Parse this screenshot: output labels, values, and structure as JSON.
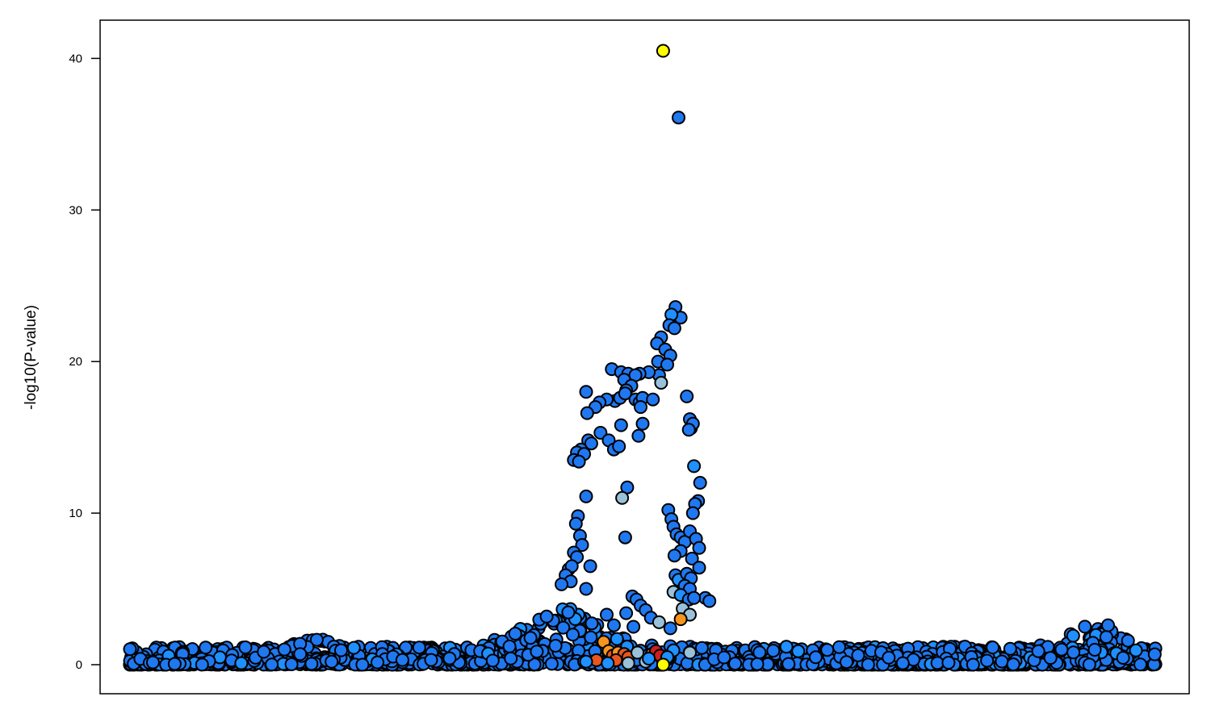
{
  "chart_data": {
    "type": "scatter",
    "title": "",
    "xlabel": "",
    "ylabel": "-log10(P-value)",
    "xlim": [
      0,
      1
    ],
    "ylim": [
      -2,
      42.5
    ],
    "yticks": [
      0,
      10,
      20,
      30,
      40
    ],
    "x_ticks_shown": false,
    "grid": false,
    "legend": "none",
    "colors": {
      "default": "#1f78f0",
      "light": "#1e90ff",
      "pale": "#99c2da",
      "orange": "#f7941d",
      "dark_orange": "#e8561f",
      "red": "#cc1f1f",
      "yellow": "#ffff00"
    },
    "highlight_points": [
      {
        "x": 0.52,
        "y": 40.5,
        "color": "yellow"
      },
      {
        "x": 0.52,
        "y": 0.0,
        "color": "yellow"
      }
    ],
    "peak_points": [
      {
        "x": 0.535,
        "y": 36.1,
        "color": "default"
      },
      {
        "x": 0.532,
        "y": 23.6,
        "color": "default"
      },
      {
        "x": 0.537,
        "y": 22.9,
        "color": "default"
      },
      {
        "x": 0.528,
        "y": 23.1,
        "color": "light"
      },
      {
        "x": 0.526,
        "y": 22.4,
        "color": "default"
      },
      {
        "x": 0.531,
        "y": 22.2,
        "color": "default"
      },
      {
        "x": 0.518,
        "y": 21.6,
        "color": "default"
      },
      {
        "x": 0.514,
        "y": 21.2,
        "color": "default"
      },
      {
        "x": 0.522,
        "y": 20.8,
        "color": "default"
      },
      {
        "x": 0.527,
        "y": 20.4,
        "color": "default"
      },
      {
        "x": 0.515,
        "y": 20.0,
        "color": "default"
      },
      {
        "x": 0.524,
        "y": 19.8,
        "color": "default"
      },
      {
        "x": 0.516,
        "y": 19.1,
        "color": "default"
      },
      {
        "x": 0.518,
        "y": 18.6,
        "color": "pale"
      },
      {
        "x": 0.506,
        "y": 19.3,
        "color": "default"
      },
      {
        "x": 0.497,
        "y": 19.2,
        "color": "default"
      },
      {
        "x": 0.47,
        "y": 19.5,
        "color": "default"
      },
      {
        "x": 0.479,
        "y": 19.3,
        "color": "default"
      },
      {
        "x": 0.486,
        "y": 19.2,
        "color": "default"
      },
      {
        "x": 0.493,
        "y": 19.1,
        "color": "default"
      },
      {
        "x": 0.482,
        "y": 18.8,
        "color": "default"
      },
      {
        "x": 0.489,
        "y": 18.4,
        "color": "default"
      },
      {
        "x": 0.484,
        "y": 18.1,
        "color": "default"
      },
      {
        "x": 0.445,
        "y": 18.0,
        "color": "default"
      },
      {
        "x": 0.473,
        "y": 17.4,
        "color": "default"
      },
      {
        "x": 0.465,
        "y": 17.5,
        "color": "default"
      },
      {
        "x": 0.458,
        "y": 17.3,
        "color": "default"
      },
      {
        "x": 0.478,
        "y": 17.6,
        "color": "default"
      },
      {
        "x": 0.483,
        "y": 17.9,
        "color": "default"
      },
      {
        "x": 0.493,
        "y": 17.5,
        "color": "default"
      },
      {
        "x": 0.497,
        "y": 17.3,
        "color": "default"
      },
      {
        "x": 0.5,
        "y": 17.6,
        "color": "default"
      },
      {
        "x": 0.51,
        "y": 17.5,
        "color": "default"
      },
      {
        "x": 0.498,
        "y": 17.0,
        "color": "default"
      },
      {
        "x": 0.454,
        "y": 17.0,
        "color": "default"
      },
      {
        "x": 0.446,
        "y": 16.6,
        "color": "default"
      },
      {
        "x": 0.459,
        "y": 15.3,
        "color": "default"
      },
      {
        "x": 0.479,
        "y": 15.8,
        "color": "default"
      },
      {
        "x": 0.5,
        "y": 15.9,
        "color": "default"
      },
      {
        "x": 0.496,
        "y": 15.1,
        "color": "default"
      },
      {
        "x": 0.467,
        "y": 14.8,
        "color": "default"
      },
      {
        "x": 0.472,
        "y": 14.2,
        "color": "default"
      },
      {
        "x": 0.477,
        "y": 14.4,
        "color": "default"
      },
      {
        "x": 0.447,
        "y": 14.8,
        "color": "default"
      },
      {
        "x": 0.45,
        "y": 14.6,
        "color": "default"
      },
      {
        "x": 0.44,
        "y": 14.2,
        "color": "default"
      },
      {
        "x": 0.436,
        "y": 14.0,
        "color": "default"
      },
      {
        "x": 0.443,
        "y": 13.9,
        "color": "default"
      },
      {
        "x": 0.433,
        "y": 13.5,
        "color": "default"
      },
      {
        "x": 0.438,
        "y": 13.4,
        "color": "default"
      },
      {
        "x": 0.445,
        "y": 11.1,
        "color": "default"
      },
      {
        "x": 0.485,
        "y": 11.7,
        "color": "default"
      },
      {
        "x": 0.48,
        "y": 11.0,
        "color": "pale"
      },
      {
        "x": 0.483,
        "y": 8.4,
        "color": "default"
      },
      {
        "x": 0.437,
        "y": 9.8,
        "color": "default"
      },
      {
        "x": 0.435,
        "y": 9.3,
        "color": "default"
      },
      {
        "x": 0.439,
        "y": 8.5,
        "color": "default"
      },
      {
        "x": 0.441,
        "y": 7.9,
        "color": "default"
      },
      {
        "x": 0.433,
        "y": 7.4,
        "color": "default"
      },
      {
        "x": 0.436,
        "y": 7.1,
        "color": "default"
      },
      {
        "x": 0.428,
        "y": 6.3,
        "color": "default"
      },
      {
        "x": 0.431,
        "y": 6.5,
        "color": "default"
      },
      {
        "x": 0.449,
        "y": 6.5,
        "color": "default"
      },
      {
        "x": 0.425,
        "y": 5.9,
        "color": "default"
      },
      {
        "x": 0.43,
        "y": 5.5,
        "color": "default"
      },
      {
        "x": 0.421,
        "y": 5.3,
        "color": "default"
      },
      {
        "x": 0.445,
        "y": 5.0,
        "color": "default"
      },
      {
        "x": 0.543,
        "y": 17.7,
        "color": "default"
      },
      {
        "x": 0.546,
        "y": 16.2,
        "color": "default"
      },
      {
        "x": 0.547,
        "y": 15.6,
        "color": "default"
      },
      {
        "x": 0.549,
        "y": 15.9,
        "color": "default"
      },
      {
        "x": 0.545,
        "y": 15.5,
        "color": "default"
      },
      {
        "x": 0.55,
        "y": 13.1,
        "color": "light"
      },
      {
        "x": 0.556,
        "y": 12.0,
        "color": "default"
      },
      {
        "x": 0.554,
        "y": 10.8,
        "color": "default"
      },
      {
        "x": 0.551,
        "y": 10.6,
        "color": "default"
      },
      {
        "x": 0.549,
        "y": 10.0,
        "color": "default"
      },
      {
        "x": 0.525,
        "y": 10.2,
        "color": "default"
      },
      {
        "x": 0.528,
        "y": 9.6,
        "color": "default"
      },
      {
        "x": 0.53,
        "y": 9.1,
        "color": "default"
      },
      {
        "x": 0.533,
        "y": 8.6,
        "color": "default"
      },
      {
        "x": 0.537,
        "y": 8.4,
        "color": "default"
      },
      {
        "x": 0.541,
        "y": 8.1,
        "color": "default"
      },
      {
        "x": 0.546,
        "y": 8.8,
        "color": "default"
      },
      {
        "x": 0.552,
        "y": 8.3,
        "color": "default"
      },
      {
        "x": 0.555,
        "y": 7.7,
        "color": "default"
      },
      {
        "x": 0.537,
        "y": 7.5,
        "color": "default"
      },
      {
        "x": 0.531,
        "y": 7.2,
        "color": "default"
      },
      {
        "x": 0.548,
        "y": 7.0,
        "color": "default"
      },
      {
        "x": 0.555,
        "y": 6.4,
        "color": "default"
      },
      {
        "x": 0.532,
        "y": 5.9,
        "color": "default"
      },
      {
        "x": 0.535,
        "y": 5.6,
        "color": "light"
      },
      {
        "x": 0.543,
        "y": 6.0,
        "color": "default"
      },
      {
        "x": 0.547,
        "y": 5.7,
        "color": "default"
      },
      {
        "x": 0.541,
        "y": 5.2,
        "color": "default"
      },
      {
        "x": 0.546,
        "y": 5.0,
        "color": "default"
      },
      {
        "x": 0.53,
        "y": 4.8,
        "color": "pale"
      },
      {
        "x": 0.537,
        "y": 4.6,
        "color": "light"
      },
      {
        "x": 0.545,
        "y": 4.3,
        "color": "default"
      },
      {
        "x": 0.561,
        "y": 4.4,
        "color": "default"
      },
      {
        "x": 0.565,
        "y": 4.2,
        "color": "default"
      },
      {
        "x": 0.55,
        "y": 4.4,
        "color": "default"
      },
      {
        "x": 0.539,
        "y": 3.7,
        "color": "pale"
      },
      {
        "x": 0.546,
        "y": 3.3,
        "color": "pale"
      },
      {
        "x": 0.537,
        "y": 3.0,
        "color": "orange"
      },
      {
        "x": 0.49,
        "y": 4.5,
        "color": "default"
      },
      {
        "x": 0.494,
        "y": 4.3,
        "color": "default"
      },
      {
        "x": 0.498,
        "y": 3.9,
        "color": "default"
      },
      {
        "x": 0.503,
        "y": 3.6,
        "color": "default"
      },
      {
        "x": 0.508,
        "y": 3.1,
        "color": "default"
      },
      {
        "x": 0.516,
        "y": 2.8,
        "color": "pale"
      },
      {
        "x": 0.527,
        "y": 2.4,
        "color": "default"
      },
      {
        "x": 0.472,
        "y": 2.6,
        "color": "default"
      },
      {
        "x": 0.465,
        "y": 3.3,
        "color": "default"
      },
      {
        "x": 0.484,
        "y": 3.4,
        "color": "default"
      },
      {
        "x": 0.491,
        "y": 2.5,
        "color": "default"
      },
      {
        "x": 0.475,
        "y": 1.7,
        "color": "light"
      },
      {
        "x": 0.462,
        "y": 1.5,
        "color": "orange"
      },
      {
        "x": 0.467,
        "y": 0.9,
        "color": "orange"
      },
      {
        "x": 0.471,
        "y": 0.6,
        "color": "dark_orange"
      },
      {
        "x": 0.476,
        "y": 0.8,
        "color": "orange"
      },
      {
        "x": 0.482,
        "y": 0.7,
        "color": "dark_orange"
      },
      {
        "x": 0.486,
        "y": 0.5,
        "color": "dark_orange"
      },
      {
        "x": 0.455,
        "y": 0.3,
        "color": "dark_orange"
      },
      {
        "x": 0.474,
        "y": 0.3,
        "color": "dark_orange"
      },
      {
        "x": 0.509,
        "y": 0.7,
        "color": "dark_orange"
      },
      {
        "x": 0.513,
        "y": 0.9,
        "color": "red"
      },
      {
        "x": 0.517,
        "y": 0.6,
        "color": "red"
      },
      {
        "x": 0.495,
        "y": 0.8,
        "color": "pale"
      },
      {
        "x": 0.503,
        "y": 0.2,
        "color": "pale"
      },
      {
        "x": 0.486,
        "y": 0.1,
        "color": "pale"
      },
      {
        "x": 0.445,
        "y": 0.2,
        "color": "light"
      },
      {
        "x": 0.506,
        "y": 0.4,
        "color": "light"
      },
      {
        "x": 0.466,
        "y": 0.1,
        "color": "light"
      },
      {
        "x": 0.524,
        "y": 0.5,
        "color": "light"
      },
      {
        "x": 0.546,
        "y": 0.8,
        "color": "pale"
      }
    ]
  }
}
